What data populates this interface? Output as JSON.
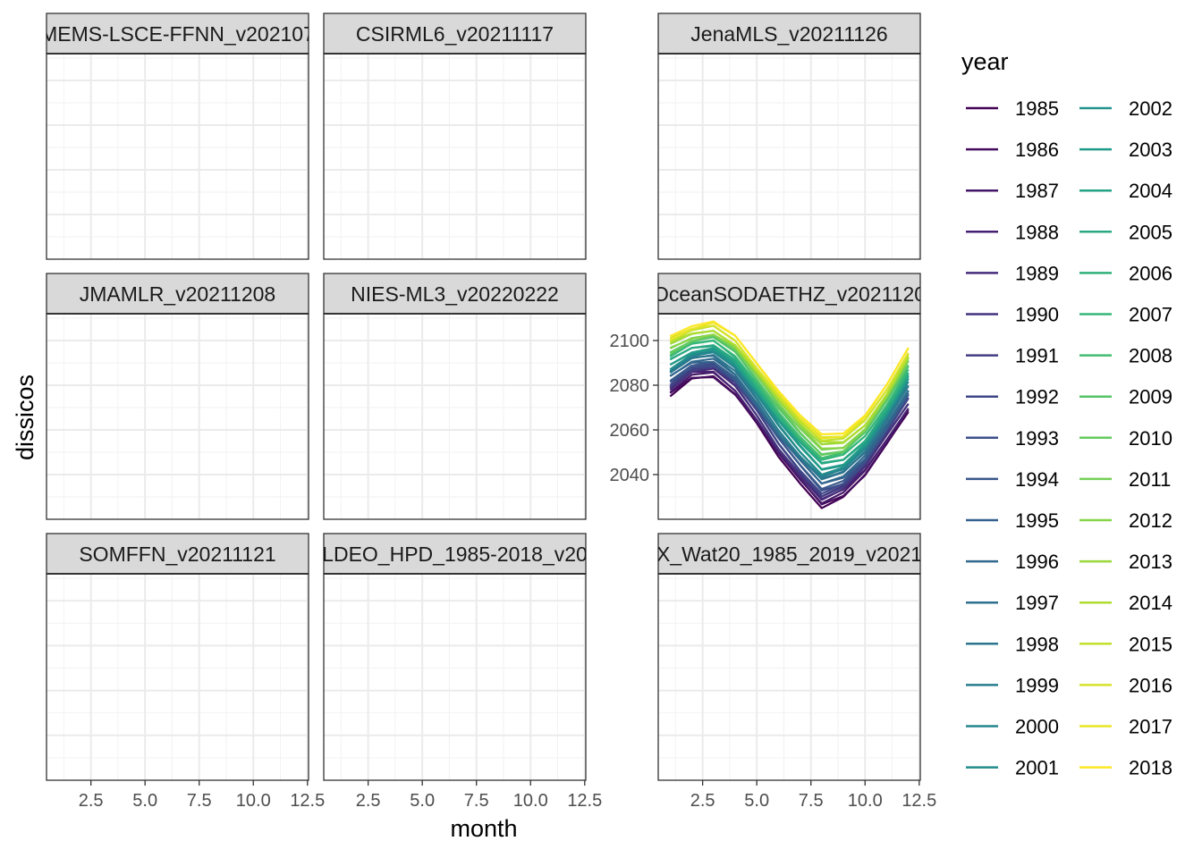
{
  "chart_data": {
    "type": "line",
    "facet": "faceted small multiples",
    "xlabel": "month",
    "ylabel": "dissicos",
    "xlim": [
      0.45,
      12.55
    ],
    "ylim": [
      2020,
      2112
    ],
    "x_ticks": [
      "2.5",
      "5.0",
      "7.5",
      "10.0",
      "12.5"
    ],
    "x_tick_values": [
      2.5,
      5.0,
      7.5,
      10.0,
      12.5
    ],
    "y_ticks": [
      "2040",
      "2060",
      "2080",
      "2100"
    ],
    "y_tick_values": [
      2040,
      2060,
      2080,
      2100
    ],
    "grid": true,
    "colorscale": "viridis",
    "legend": {
      "title": "year",
      "position": "right",
      "columns": 2,
      "years": [
        "1985",
        "1986",
        "1987",
        "1988",
        "1989",
        "1990",
        "1991",
        "1992",
        "1993",
        "1994",
        "1995",
        "1996",
        "1997",
        "1998",
        "1999",
        "2000",
        "2001",
        "2002",
        "2003",
        "2004",
        "2005",
        "2006",
        "2007",
        "2008",
        "2009",
        "2010",
        "2011",
        "2012",
        "2013",
        "2014",
        "2015",
        "2016",
        "2017",
        "2018"
      ]
    },
    "panels": [
      {
        "label": "MEMS-LSCE-FFNN_v202107",
        "has_data": false
      },
      {
        "label": "CSIRML6_v20211117",
        "has_data": false
      },
      {
        "label": "JenaMLS_v20211126",
        "has_data": false
      },
      {
        "label": "JMAMLR_v20211208",
        "has_data": false
      },
      {
        "label": "NIES-ML3_v20220222",
        "has_data": false
      },
      {
        "label": "OceanSODAETHZ_v2021120",
        "has_data": true
      },
      {
        "label": "SOMFFN_v20211121",
        "has_data": false
      },
      {
        "label": "LDEO_HPD_1985-2018_v20",
        "has_data": false
      },
      {
        "label": "X_Wat20_1985_2019_v2021",
        "has_data": false
      }
    ],
    "x": [
      1,
      2,
      3,
      4,
      5,
      6,
      7,
      8,
      9,
      10,
      11,
      12
    ],
    "series_first": {
      "year": "1985",
      "values": [
        2075,
        2083,
        2084,
        2076,
        2063,
        2048,
        2036,
        2025,
        2030,
        2040,
        2054,
        2068
      ]
    },
    "series_last": {
      "year": "2018",
      "values": [
        2102,
        2106,
        2108,
        2102,
        2090,
        2078,
        2067,
        2058,
        2058,
        2066,
        2080,
        2097
      ]
    },
    "series_note_interpolated": true
  }
}
